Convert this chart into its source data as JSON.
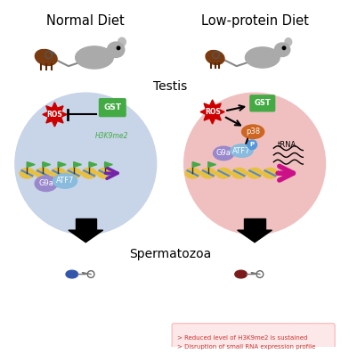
{
  "title_left": "Normal Diet",
  "title_right": "Low-protein Diet",
  "testis_label": "Testis",
  "spermatozoa_label": "Spermatozoa",
  "left_circle_color": "#c8d4e8",
  "right_circle_color": "#f0c0c0",
  "note_bg_color": "#fce8e8",
  "note_text1": "> Reduced level of H3K9me2 is sustained",
  "note_text2": "> Disruption of small RNA expression profile",
  "note_text_color": "#cc3333",
  "ros_color": "#cc0000",
  "gst_color": "#44aa44",
  "p38_color": "#cc6622",
  "g9a_color": "#9988cc",
  "atf7_color": "#88bbdd",
  "nucleosome_color": "#e8c040",
  "arrow_purple": "#7722aa",
  "arrow_pink": "#cc1188",
  "h3k9me2_color": "#44aa44",
  "sperm_left_color": "#3355aa",
  "sperm_right_color": "#7a1c1c",
  "background_color": "#ffffff"
}
